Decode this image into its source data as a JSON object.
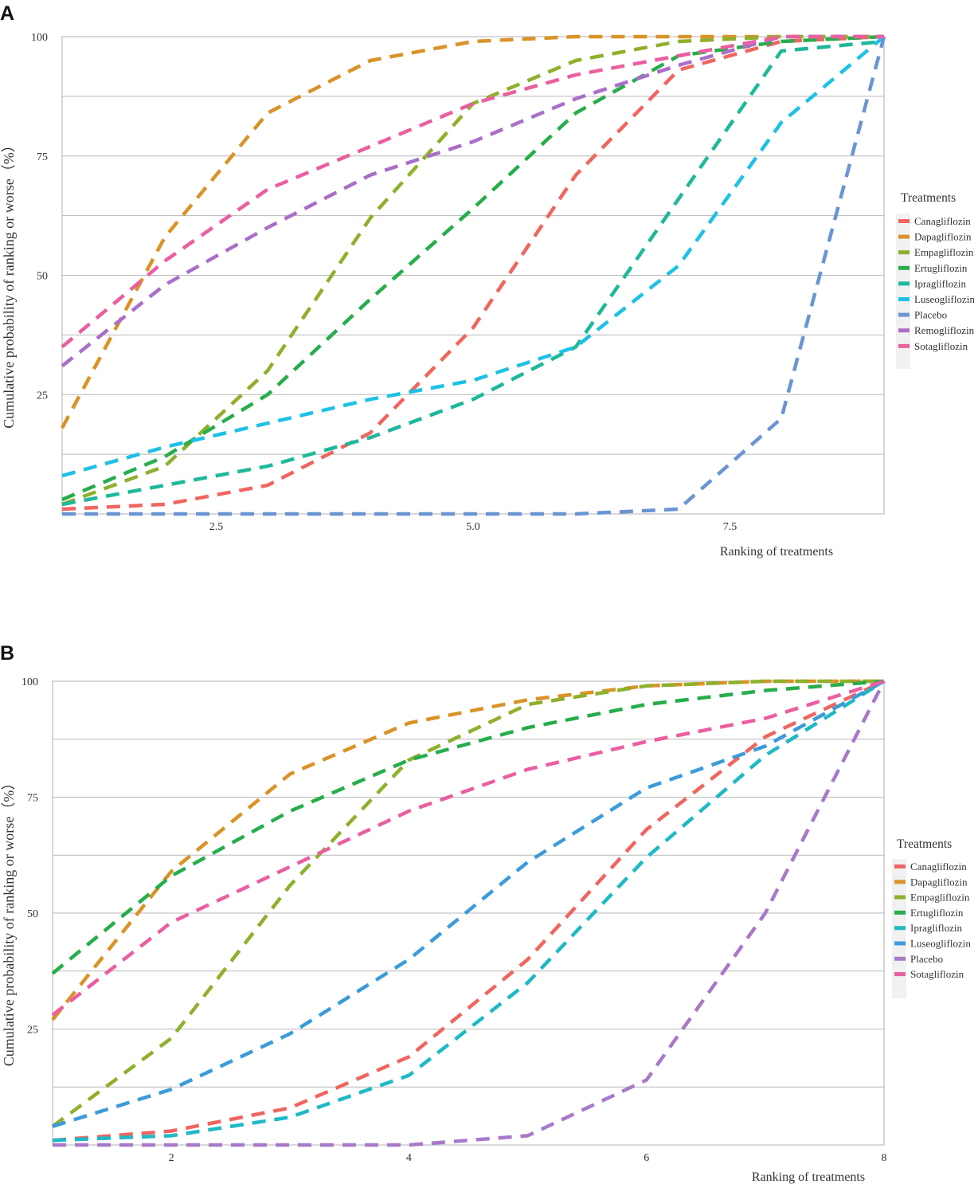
{
  "chart_data": [
    {
      "panel_label": "A",
      "type": "line",
      "xlabel": "Ranking of treatments",
      "ylabel": "Cumulative probability of ranking or worse（%）",
      "xlim": [
        1,
        9
      ],
      "ylim": [
        0,
        100
      ],
      "x_ticks": [
        "2.5",
        "5.0",
        "7.5"
      ],
      "x_tick_values": [
        2.5,
        5.0,
        7.5
      ],
      "y_ticks": [
        "25",
        "50",
        "75",
        "100"
      ],
      "y_tick_values": [
        25,
        50,
        75,
        100
      ],
      "grid": true,
      "legend_title": "Treatments",
      "legend_position": "right",
      "x": [
        1,
        2,
        3,
        4,
        5,
        6,
        7,
        8,
        9
      ],
      "series": [
        {
          "name": "Canagliflozin",
          "color": "#f0655f",
          "values": [
            1,
            2,
            6,
            17,
            39,
            71,
            93,
            99,
            100
          ]
        },
        {
          "name": "Dapagliflozin",
          "color": "#d99327",
          "values": [
            18,
            58,
            84,
            95,
            99,
            100,
            100,
            100,
            100
          ]
        },
        {
          "name": "Empagliflozin",
          "color": "#8fb02c",
          "values": [
            2,
            10,
            30,
            62,
            86,
            95,
            99,
            100,
            100
          ]
        },
        {
          "name": "Ertugliflozin",
          "color": "#27ad4b",
          "values": [
            3,
            12,
            25,
            45,
            64,
            84,
            96,
            99,
            100
          ]
        },
        {
          "name": "Ipragliflozin",
          "color": "#1eb89a",
          "values": [
            2,
            6,
            10,
            16,
            24,
            35,
            66,
            97,
            99
          ]
        },
        {
          "name": "Luseogliflozin",
          "color": "#1ec1e6",
          "values": [
            8,
            14,
            19,
            24,
            28,
            35,
            52,
            82,
            100
          ]
        },
        {
          "name": "Placebo",
          "color": "#6a95d3",
          "values": [
            0,
            0,
            0,
            0,
            0,
            0,
            1,
            20,
            100
          ]
        },
        {
          "name": "Remogliflozin",
          "color": "#aa6ec8",
          "values": [
            31,
            48,
            60,
            71,
            78,
            87,
            94,
            100,
            100
          ]
        },
        {
          "name": "Sotagliflozin",
          "color": "#ea5fa0",
          "values": [
            35,
            53,
            68,
            77,
            86,
            92,
            96,
            100,
            100
          ]
        }
      ]
    },
    {
      "panel_label": "B",
      "type": "line",
      "xlabel": "Ranking of treatments",
      "ylabel": "Cumulative probability of ranking or worse（%）",
      "xlim": [
        1,
        8
      ],
      "ylim": [
        0,
        100
      ],
      "x_ticks": [
        "2",
        "4",
        "6",
        "8"
      ],
      "x_tick_values": [
        2,
        4,
        6,
        8
      ],
      "y_ticks": [
        "25",
        "50",
        "75",
        "100"
      ],
      "y_tick_values": [
        25,
        50,
        75,
        100
      ],
      "grid": true,
      "legend_title": "Treatments",
      "legend_position": "right",
      "x": [
        1,
        2,
        3,
        4,
        5,
        6,
        7,
        8
      ],
      "series": [
        {
          "name": "Canagliflozin",
          "color": "#f0655f",
          "values": [
            1,
            3,
            8,
            19,
            40,
            68,
            88,
            100
          ]
        },
        {
          "name": "Dapagliflozin",
          "color": "#d99327",
          "values": [
            27,
            59,
            80,
            91,
            96,
            99,
            100,
            100
          ]
        },
        {
          "name": "Empagliflozin",
          "color": "#8fb02c",
          "values": [
            4,
            23,
            56,
            83,
            95,
            99,
            100,
            100
          ]
        },
        {
          "name": "Ertugliflozin",
          "color": "#27ad4b",
          "values": [
            37,
            58,
            72,
            83,
            90,
            95,
            98,
            100
          ]
        },
        {
          "name": "Ipragliflozin",
          "color": "#1eb9c6",
          "values": [
            1,
            2,
            6,
            15,
            35,
            62,
            84,
            100
          ]
        },
        {
          "name": "Luseogliflozin",
          "color": "#3d9bd9",
          "values": [
            4,
            12,
            24,
            40,
            61,
            77,
            86,
            100
          ]
        },
        {
          "name": "Placebo",
          "color": "#a979c9",
          "values": [
            0,
            0,
            0,
            0,
            2,
            14,
            50,
            100
          ]
        },
        {
          "name": "Sotagliflozin",
          "color": "#ea5fa0",
          "values": [
            28,
            48,
            60,
            72,
            81,
            87,
            92,
            100
          ]
        }
      ]
    }
  ]
}
